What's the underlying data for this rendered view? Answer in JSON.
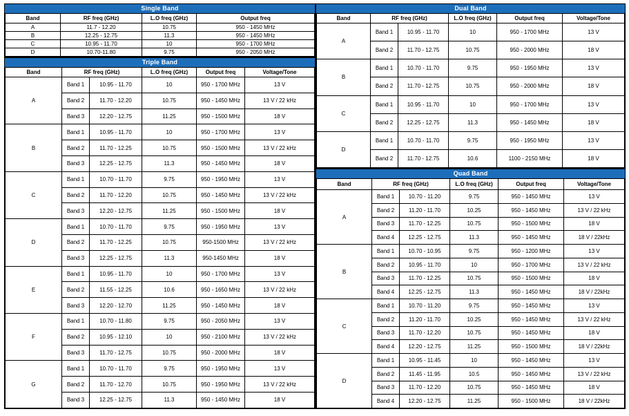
{
  "colors": {
    "accent": "#1d6eba",
    "title_text": "#ffffff",
    "grid_border": "#000000"
  },
  "tables": {
    "single": {
      "title": "Single Band",
      "columns": [
        "Band",
        "RF freq (GHz)",
        "L.O freq (GHz)",
        "Output freq"
      ],
      "rows": [
        [
          "A",
          "11.7 - 12.20",
          "10.75",
          "950 - 1450 MHz"
        ],
        [
          "B",
          "12.25 - 12.75",
          "11.3",
          "950 - 1450 MHz"
        ],
        [
          "C",
          "10.95 - 11.70",
          "10",
          "950 - 1700 MHz"
        ],
        [
          "D",
          "10.70-11.80",
          "9.75",
          "950 - 2050 MHz"
        ]
      ]
    },
    "triple": {
      "title": "Triple Band",
      "columns": [
        "Band",
        "RF freq (GHz)",
        "L.O freq (GHz)",
        "Output freq",
        "Voltage/Tone"
      ],
      "groups": [
        {
          "band": "A",
          "rows": [
            [
              "Band 1",
              "10.95 - 11.70",
              "10",
              "950 - 1700 MHz",
              "13 V"
            ],
            [
              "Band 2",
              "11.70 - 12.20",
              "10.75",
              "950 - 1450 MHz",
              "13 V / 22 kHz"
            ],
            [
              "Band 3",
              "12.20 - 12.75",
              "11.25",
              "950 - 1500 MHz",
              "18 V"
            ]
          ]
        },
        {
          "band": "B",
          "rows": [
            [
              "Band 1",
              "10.95 - 11.70",
              "10",
              "950 - 1700 MHz",
              "13 V"
            ],
            [
              "Band 2",
              "11.70 - 12.25",
              "10.75",
              "950 - 1500 MHz",
              "13 V / 22 kHz"
            ],
            [
              "Band 3",
              "12.25 - 12.75",
              "11.3",
              "950 - 1450 MHz",
              "18 V"
            ]
          ]
        },
        {
          "band": "C",
          "rows": [
            [
              "Band 1",
              "10.70 - 11.70",
              "9.75",
              "950 - 1950 MHz",
              "13 V"
            ],
            [
              "Band 2",
              "11.70 - 12.20",
              "10.75",
              "950 - 1450 MHz",
              "13 V / 22 kHz"
            ],
            [
              "Band 3",
              "12.20 - 12.75",
              "11.25",
              "950 - 1500 MHz",
              "18 V"
            ]
          ]
        },
        {
          "band": "D",
          "rows": [
            [
              "Band 1",
              "10.70 - 11.70",
              "9.75",
              "950 - 1950 MHz",
              "13 V"
            ],
            [
              "Band 2",
              "11.70 - 12.25",
              "10.75",
              "950-1500 MHz",
              "13 V / 22 kHz"
            ],
            [
              "Band 3",
              "12.25 - 12.75",
              "11.3",
              "950-1450 MHz",
              "18 V"
            ]
          ]
        },
        {
          "band": "E",
          "rows": [
            [
              "Band 1",
              "10.95 - 11.70",
              "10",
              "950 - 1700 MHz",
              "13 V"
            ],
            [
              "Band 2",
              "11.55 - 12.25",
              "10.6",
              "950 - 1650 MHz",
              "13 V / 22 kHz"
            ],
            [
              "Band 3",
              "12.20 - 12.70",
              "11.25",
              "950 - 1450 MHz",
              "18 V"
            ]
          ]
        },
        {
          "band": "F",
          "rows": [
            [
              "Band 1",
              "10.70 - 11.80",
              "9.75",
              "950 - 2050 MHz",
              "13 V"
            ],
            [
              "Band 2",
              "10.95 - 12.10",
              "10",
              "950 - 2100 MHz",
              "13 V / 22 kHz"
            ],
            [
              "Band 3",
              "11.70 - 12.75",
              "10.75",
              "950 - 2000 MHz",
              "18 V"
            ]
          ]
        },
        {
          "band": "G",
          "rows": [
            [
              "Band 1",
              "10.70 - 11.70",
              "9.75",
              "950 - 1950 MHz",
              "13 V"
            ],
            [
              "Band 2",
              "11.70 - 12.70",
              "10.75",
              "950 - 1950 MHz",
              "13 V / 22 kHz"
            ],
            [
              "Band 3",
              "12.25 - 12.75",
              "11.3",
              "950 - 1450 MHz",
              "18 V"
            ]
          ]
        }
      ]
    },
    "dual": {
      "title": "Dual Band",
      "columns": [
        "Band",
        "RF freq (GHz)",
        "L.O freq (GHz)",
        "Output freq",
        "Voltage/Tone"
      ],
      "groups": [
        {
          "band": "A",
          "rows": [
            [
              "Band 1",
              "10.95 - 11.70",
              "10",
              "950 - 1700 MHz",
              "13 V"
            ],
            [
              "Band 2",
              "11.70 - 12.75",
              "10.75",
              "950 - 2000 MHz",
              "18 V"
            ]
          ]
        },
        {
          "band": "B",
          "rows": [
            [
              "Band 1",
              "10.70 - 11.70",
              "9.75",
              "950 - 1950 MHz",
              "13 V"
            ],
            [
              "Band 2",
              "11.70 - 12.75",
              "10.75",
              "950 - 2000 MHz",
              "18 V"
            ]
          ]
        },
        {
          "band": "C",
          "rows": [
            [
              "Band 1",
              "10.95 - 11.70",
              "10",
              "950 - 1700 MHz",
              "13 V"
            ],
            [
              "Band 2",
              "12.25 - 12.75",
              "11.3",
              "950 - 1450 MHz",
              "18 V"
            ]
          ]
        },
        {
          "band": "D",
          "rows": [
            [
              "Band 1",
              "10.70 - 11.70",
              "9.75",
              "950 - 1950 MHz",
              "13 V"
            ],
            [
              "Band 2",
              "11.70 - 12.75",
              "10.6",
              "1100 - 2150 MHz",
              "18 V"
            ]
          ]
        }
      ]
    },
    "quad": {
      "title": "Quad Band",
      "columns": [
        "Band",
        "RF freq (GHz)",
        "L.O freq (GHz)",
        "Output freq",
        "Voltage/Tone"
      ],
      "groups": [
        {
          "band": "A",
          "rows": [
            [
              "Band 1",
              "10.70 - 11.20",
              "9.75",
              "950 - 1450 MHz",
              "13 V"
            ],
            [
              "Band 2",
              "11.20 - 11.70",
              "10.25",
              "950 - 1450 MHz",
              "13 V / 22 kHz"
            ],
            [
              "Band 3",
              "11.70 - 12.25",
              "10.75",
              "950 - 1500 MHz",
              "18 V"
            ],
            [
              "Band 4",
              "12.25 - 12.75",
              "11.3",
              "950 - 1450 MHz",
              "18 V / 22kHz"
            ]
          ]
        },
        {
          "band": "B",
          "rows": [
            [
              "Band 1",
              "10.70 - 10.95",
              "9.75",
              "950 - 1200 MHz",
              "13 V"
            ],
            [
              "Band 2",
              "10.95 - 11.70",
              "10",
              "950 - 1700 MHz",
              "13 V / 22 kHz"
            ],
            [
              "Band 3",
              "11.70 - 12.25",
              "10.75",
              "950 - 1500 MHz",
              "18 V"
            ],
            [
              "Band 4",
              "12.25 - 12.75",
              "11.3",
              "950 - 1450 MHz",
              "18 V / 22kHz"
            ]
          ]
        },
        {
          "band": "C",
          "rows": [
            [
              "Band 1",
              "10.70 - 11.20",
              "9.75",
              "950 - 1450 MHz",
              "13 V"
            ],
            [
              "Band 2",
              "11.20 - 11.70",
              "10.25",
              "950 - 1450 MHz",
              "13 V / 22 kHz"
            ],
            [
              "Band 3",
              "11.70 - 12.20",
              "10.75",
              "950 - 1450 MHz",
              "18 V"
            ],
            [
              "Band 4",
              "12.20 - 12.75",
              "11.25",
              "950 - 1500 MHz",
              "18 V / 22kHz"
            ]
          ]
        },
        {
          "band": "D",
          "rows": [
            [
              "Band 1",
              "10.95 - 11.45",
              "10",
              "950 - 1450 MHz",
              "13 V"
            ],
            [
              "Band 2",
              "11.45 - 11.95",
              "10.5",
              "950 - 1450 MHz",
              "13 V / 22 kHz"
            ],
            [
              "Band 3",
              "11.70 - 12.20",
              "10.75",
              "950 - 1450 MHz",
              "18 V"
            ],
            [
              "Band 4",
              "12.20 - 12.75",
              "11.25",
              "950 - 1500 MHz",
              "18 V / 22kHz"
            ]
          ]
        }
      ]
    }
  }
}
